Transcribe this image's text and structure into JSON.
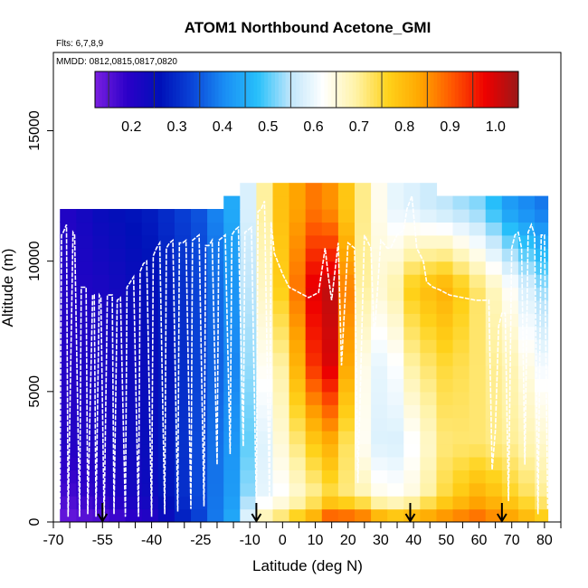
{
  "chart_data": {
    "type": "heatmap",
    "title": "ATOM1 Northbound Acetone_GMI",
    "flights_label": "Flts: 6,7,8,9",
    "mmdd_label": "MMDD: 0812,0815,0817,0820",
    "xlabel": "Latitude (deg N)",
    "ylabel": "Altitude (m)",
    "xlim": [
      -70,
      85
    ],
    "ylim": [
      0,
      18000
    ],
    "x_ticks": [
      -70,
      -55,
      -40,
      -25,
      -10,
      0,
      10,
      20,
      30,
      40,
      50,
      60,
      70,
      80
    ],
    "x_tick_labels": [
      "-70",
      "-55",
      "-40",
      "-25",
      "-10",
      "0",
      "10",
      "20",
      "30",
      "40",
      "50",
      "60",
      "70",
      "80"
    ],
    "x_minor_ticks": [
      -65,
      -60,
      -50,
      -45,
      -35,
      -30,
      -20,
      -15,
      -5,
      5,
      15,
      25,
      35,
      45,
      55,
      65,
      75,
      85
    ],
    "y_ticks": [
      0,
      5000,
      10000,
      15000
    ],
    "y_tick_labels": [
      "0",
      "5000",
      "10000",
      "15000"
    ],
    "colorbar": {
      "min": 0.12,
      "max": 1.05,
      "ticks": [
        0.2,
        0.3,
        0.4,
        0.5,
        0.6,
        0.7,
        0.8,
        0.9,
        1.0
      ],
      "tick_labels": [
        "0.2",
        "0.3",
        "0.4",
        "0.5",
        "0.6",
        "0.7",
        "0.8",
        "0.9",
        "1.0"
      ],
      "colors": [
        "#7a1fe0",
        "#2b00c8",
        "#0010b8",
        "#0a46d8",
        "#1a8ff5",
        "#28c0fa",
        "#bfe6fb",
        "#ffffff",
        "#fff3a8",
        "#ffd21a",
        "#ffa500",
        "#ff5500",
        "#ee0000",
        "#9b1818"
      ]
    },
    "profile_region_latitudes": [
      -55,
      -8,
      39,
      67
    ],
    "latitude_bins": [
      -68,
      -63,
      -58,
      -53,
      -48,
      -43,
      -38,
      -33,
      -28,
      -23,
      -18,
      -13,
      -8,
      -3,
      2,
      7,
      12,
      17,
      22,
      27,
      32,
      37,
      42,
      47,
      52,
      57,
      62,
      67,
      72,
      77,
      81
    ],
    "altitude_bins_top": [
      12000,
      12000,
      12000,
      12000,
      12000,
      12000,
      12000,
      12000,
      12000,
      12000,
      12500,
      12700,
      12900,
      12900,
      12900,
      12900,
      12900,
      12900,
      12900,
      12900,
      12900,
      12900,
      12900,
      12500,
      12500,
      12500,
      12500,
      12500,
      12500,
      12500,
      11000
    ],
    "acetone_ppbv_profiles": [
      {
        "lat": -68,
        "alt": [
          0,
          1000,
          3000,
          6000,
          9000,
          12000
        ],
        "value": [
          0.13,
          0.16,
          0.2,
          0.2,
          0.2,
          0.2
        ]
      },
      {
        "lat": -55,
        "alt": [
          0,
          1000,
          3000,
          6000,
          9000,
          12000
        ],
        "value": [
          0.15,
          0.2,
          0.22,
          0.22,
          0.22,
          0.25
        ]
      },
      {
        "lat": -40,
        "alt": [
          0,
          1000,
          3000,
          6000,
          9000,
          12000
        ],
        "value": [
          0.2,
          0.24,
          0.25,
          0.25,
          0.26,
          0.28
        ]
      },
      {
        "lat": -25,
        "alt": [
          0,
          1000,
          3000,
          6000,
          9000,
          12000
        ],
        "value": [
          0.33,
          0.34,
          0.34,
          0.33,
          0.33,
          0.35
        ]
      },
      {
        "lat": -15,
        "alt": [
          0,
          1000,
          3000,
          6000,
          9000,
          12000
        ],
        "value": [
          0.45,
          0.43,
          0.42,
          0.4,
          0.42,
          0.45
        ]
      },
      {
        "lat": -8,
        "alt": [
          0,
          1000,
          3000,
          6000,
          9000,
          12000
        ],
        "value": [
          0.68,
          0.58,
          0.55,
          0.6,
          0.62,
          0.65
        ]
      },
      {
        "lat": 0,
        "alt": [
          0,
          1000,
          3000,
          6000,
          9000,
          12000
        ],
        "value": [
          0.75,
          0.62,
          0.66,
          0.7,
          0.78,
          0.8
        ]
      },
      {
        "lat": 10,
        "alt": [
          0,
          1000,
          3000,
          6000,
          9000,
          12000
        ],
        "value": [
          0.85,
          0.7,
          0.78,
          0.95,
          1.0,
          0.88
        ]
      },
      {
        "lat": 15,
        "alt": [
          0,
          1000,
          3000,
          6000,
          9000,
          12000
        ],
        "value": [
          0.95,
          0.74,
          0.82,
          1.0,
          1.02,
          0.85
        ]
      },
      {
        "lat": 25,
        "alt": [
          0,
          1000,
          3000,
          6000,
          9000,
          12000
        ],
        "value": [
          0.92,
          0.68,
          0.62,
          0.62,
          0.68,
          0.7
        ]
      },
      {
        "lat": 32,
        "alt": [
          0,
          1000,
          3000,
          6000,
          9000,
          12000
        ],
        "value": [
          0.82,
          0.62,
          0.56,
          0.58,
          0.65,
          0.6
        ]
      },
      {
        "lat": 40,
        "alt": [
          0,
          1000,
          3000,
          6000,
          9000,
          12000
        ],
        "value": [
          0.85,
          0.65,
          0.62,
          0.7,
          0.78,
          0.58
        ]
      },
      {
        "lat": 50,
        "alt": [
          0,
          1000,
          3000,
          6000,
          9000,
          12000
        ],
        "value": [
          0.88,
          0.75,
          0.72,
          0.75,
          0.82,
          0.55
        ]
      },
      {
        "lat": 60,
        "alt": [
          0,
          1000,
          3000,
          6000,
          9000,
          12000
        ],
        "value": [
          0.9,
          0.82,
          0.72,
          0.72,
          0.72,
          0.52
        ]
      },
      {
        "lat": 70,
        "alt": [
          0,
          1000,
          3000,
          6000,
          9000,
          12000
        ],
        "value": [
          0.85,
          0.76,
          0.7,
          0.68,
          0.62,
          0.42
        ]
      },
      {
        "lat": 80,
        "alt": [
          0,
          1000,
          3000,
          6000,
          9000,
          12000
        ],
        "value": [
          0.78,
          0.7,
          0.66,
          0.6,
          0.52,
          0.38
        ]
      }
    ],
    "flight_track": {
      "lat": [
        -68,
        -67.5,
        -67,
        -66,
        -65.5,
        -64,
        -63.5,
        -62,
        -61.5,
        -60,
        -59.5,
        -58,
        -57.5,
        -57,
        -56,
        -55.5,
        -54.5,
        -53.5,
        -52,
        -51.5,
        -50.5,
        -49.5,
        -48,
        -47.5,
        -46.5,
        -45.5,
        -44,
        -43.5,
        -42.5,
        -41.5,
        -40,
        -39.5,
        -38.5,
        -37.5,
        -36,
        -35.5,
        -34.5,
        -33.5,
        -32,
        -31.5,
        -30.5,
        -29.5,
        -28,
        -27.5,
        -26.5,
        -25.5,
        -24,
        -23.5,
        -22.5,
        -21.5,
        -20,
        -19.5,
        -18.5,
        -17.5,
        -16,
        -15.5,
        -14.5,
        -13.5,
        -12,
        -11.5,
        -10.5,
        -9.5,
        -8,
        -7.5,
        -6.5,
        -5.5,
        -4,
        -3.5,
        -2.5,
        0,
        2,
        5,
        8,
        11,
        13,
        14,
        15,
        17,
        18,
        20,
        22,
        23,
        25,
        27,
        28,
        30,
        32,
        33,
        35,
        37,
        38,
        39.5,
        41,
        43,
        44,
        46,
        48,
        51,
        55,
        59,
        63,
        64,
        65,
        66,
        67,
        68,
        69,
        70,
        71,
        72,
        73,
        74,
        75,
        76,
        77,
        78,
        79,
        80,
        81
      ],
      "alt": [
        500,
        11000,
        11100,
        11400,
        200,
        11100,
        11000,
        200,
        9000,
        9000,
        300,
        8700,
        8700,
        200,
        8700,
        8600,
        100,
        8700,
        8700,
        300,
        8500,
        8600,
        200,
        9000,
        9200,
        9400,
        200,
        9600,
        9900,
        10000,
        200,
        10200,
        10500,
        10700,
        300,
        10500,
        10700,
        10800,
        400,
        10700,
        10700,
        10800,
        500,
        10800,
        10900,
        11000,
        600,
        10600,
        10600,
        10800,
        2200,
        10800,
        10900,
        11000,
        2600,
        11000,
        11200,
        11300,
        2900,
        11100,
        11200,
        11300,
        500,
        11900,
        12000,
        12300,
        700,
        11500,
        10300,
        9500,
        9000,
        8800,
        8600,
        8800,
        10500,
        9400,
        8500,
        10700,
        6000,
        10700,
        10500,
        1500,
        11000,
        10500,
        7000,
        10800,
        10500,
        10500,
        11000,
        11200,
        12000,
        12500,
        10500,
        10000,
        9200,
        9000,
        8900,
        8700,
        8600,
        8500,
        8500,
        2000,
        3500,
        7500,
        8000,
        8000,
        800,
        10500,
        11000,
        11100,
        10500,
        2200,
        11100,
        11400,
        11000,
        300,
        11000,
        11000,
        500
      ]
    }
  }
}
